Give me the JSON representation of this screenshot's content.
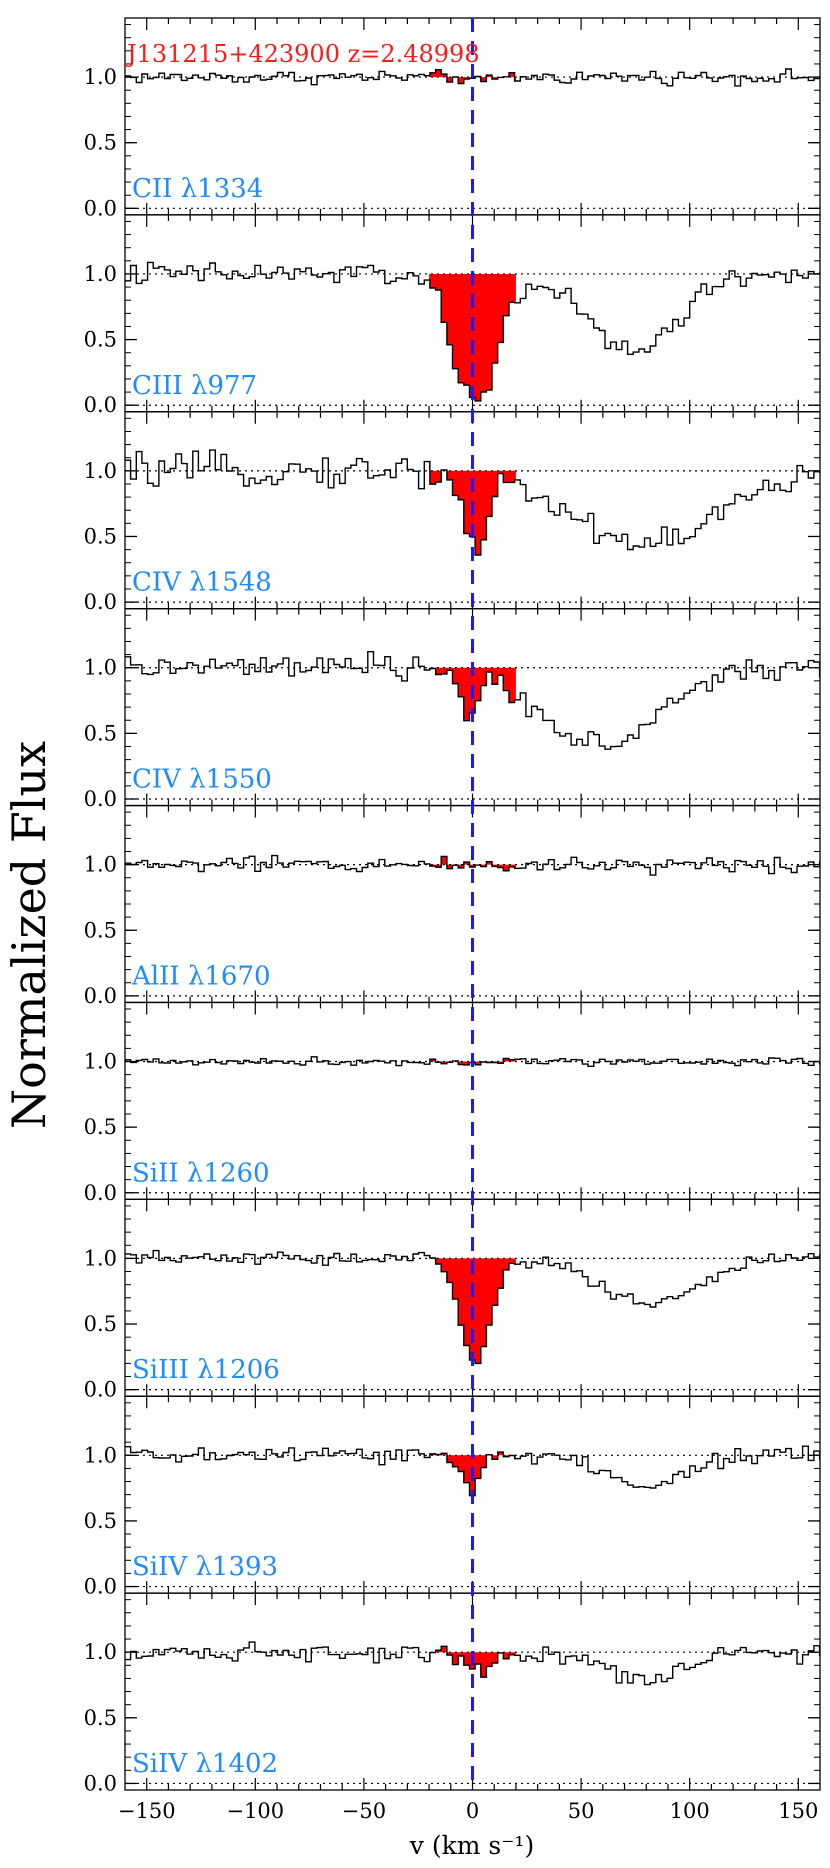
{
  "figure": {
    "object_label": "J131215+423900  z=2.48998",
    "ylabel": "Normalized Flux",
    "xlabel": "v (km s⁻¹)"
  },
  "chart_data": {
    "type": "line",
    "xlabel": "v (km s⁻¹)",
    "ylabel": "Normalized Flux",
    "xlim": [
      -160,
      160
    ],
    "ylim": [
      -0.05,
      1.45
    ],
    "xticks": [
      -150,
      -100,
      -50,
      0,
      50,
      100,
      150
    ],
    "xtick_labels": [
      "−150",
      "−100",
      "−50",
      "0",
      "50",
      "100",
      "150"
    ],
    "yticks": [
      0.0,
      0.5,
      1.0
    ],
    "ytick_labels": [
      "0.0",
      "0.5",
      "1.0"
    ],
    "reference_line_v": 0,
    "shaded_region": [
      -20,
      20
    ],
    "colors": {
      "spectrum": "#000000",
      "absorption_fill": "#ff0000",
      "zero_line": "#1a1aff",
      "ion_label": "#1e8cff",
      "object_label": "#ff1a1a"
    },
    "panels": [
      {
        "label": "CII  λ1334",
        "noise": 0.025,
        "features": [
          {
            "v": 2,
            "sigma": 4,
            "depth": 0.05
          }
        ]
      },
      {
        "label": "CIII  λ977",
        "noise": 0.045,
        "features": [
          {
            "v": 0,
            "sigma": 10,
            "depth": 1.0
          },
          {
            "v": 72,
            "sigma": 20,
            "depth": 0.6
          }
        ]
      },
      {
        "label": "CIV  λ1548",
        "noise": 0.06,
        "features": [
          {
            "v": 0,
            "sigma": 5,
            "depth": 0.58
          },
          {
            "v": 78,
            "sigma": 34,
            "depth": 0.55
          }
        ]
      },
      {
        "label": "CIV  λ1550",
        "noise": 0.045,
        "features": [
          {
            "v": -2,
            "sigma": 4,
            "depth": 0.38
          },
          {
            "v": 58,
            "sigma": 26,
            "depth": 0.6
          }
        ]
      },
      {
        "label": "AlII  λ1670",
        "noise": 0.03,
        "features": []
      },
      {
        "label": "SiII  λ1260",
        "noise": 0.015,
        "features": []
      },
      {
        "label": "SiIII  λ1206",
        "noise": 0.025,
        "features": [
          {
            "v": 0,
            "sigma": 7,
            "depth": 0.78
          },
          {
            "v": 80,
            "sigma": 22,
            "depth": 0.35
          }
        ]
      },
      {
        "label": "SiIV  λ1393",
        "noise": 0.035,
        "features": [
          {
            "v": -2,
            "sigma": 4,
            "depth": 0.3
          },
          {
            "v": 78,
            "sigma": 18,
            "depth": 0.22
          }
        ]
      },
      {
        "label": "SiIV  λ1402",
        "noise": 0.035,
        "features": [
          {
            "v": 2,
            "sigma": 5,
            "depth": 0.15
          },
          {
            "v": 78,
            "sigma": 18,
            "depth": 0.2
          }
        ]
      }
    ]
  }
}
